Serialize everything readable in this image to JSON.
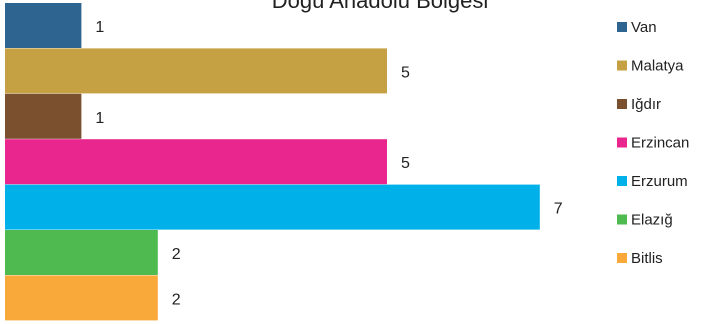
{
  "chart_data": {
    "type": "bar",
    "orientation": "horizontal",
    "title": "Doğu Anadolu Bölgesi",
    "categories": [
      "Van",
      "Malatya",
      "Iğdır",
      "Erzincan",
      "Erzurum",
      "Elazığ",
      "Bitlis"
    ],
    "values": [
      1,
      5,
      1,
      5,
      7,
      2,
      2
    ],
    "colors": [
      "#2e6590",
      "#c5a143",
      "#7b502f",
      "#e8268e",
      "#00b0e8",
      "#4fba4f",
      "#f9a83a"
    ],
    "data_labels": true,
    "grid": false,
    "legend": "right",
    "xlim": [
      0,
      7
    ]
  }
}
